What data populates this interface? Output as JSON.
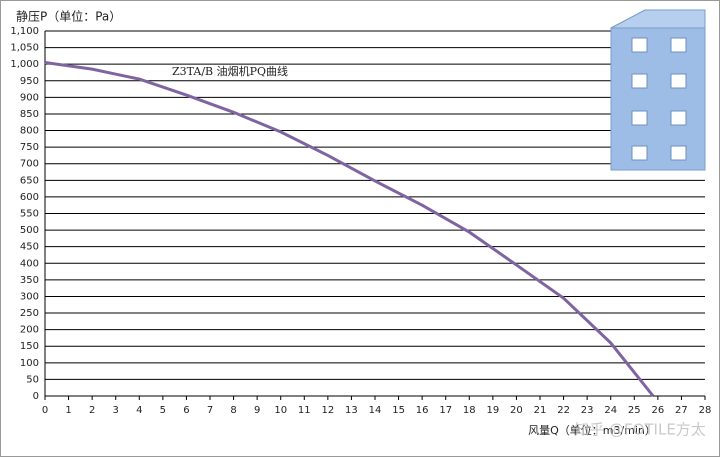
{
  "chart_data": {
    "type": "line",
    "y_axis_label": "静压P（单位：Pa）",
    "x_axis_label": "风量Q（单位：m3/min）",
    "annotation": "Z3TA/B 油烟机PQ曲线",
    "watermark": "知乎 @FOTILE方太",
    "x": [
      0,
      2,
      4,
      6,
      8,
      10,
      12,
      14,
      16,
      18,
      20,
      22,
      24,
      25.8
    ],
    "series": [
      {
        "name": "Z3TA/B",
        "color": "#8064a2",
        "values": [
          1005,
          985,
          955,
          907,
          855,
          796,
          725,
          648,
          575,
          494,
          395,
          295,
          160,
          0
        ]
      }
    ],
    "xlim": [
      0,
      28
    ],
    "xticks": [
      0,
      1,
      2,
      3,
      4,
      5,
      6,
      7,
      8,
      9,
      10,
      11,
      12,
      13,
      14,
      15,
      16,
      17,
      18,
      19,
      20,
      21,
      22,
      23,
      24,
      25,
      26,
      27,
      28
    ],
    "ylim": [
      0,
      1100
    ],
    "yticks": [
      0,
      50,
      100,
      150,
      200,
      250,
      300,
      350,
      400,
      450,
      500,
      550,
      600,
      650,
      700,
      750,
      800,
      850,
      900,
      950,
      {
        "value": 1000,
        "label": "1,000"
      },
      {
        "value": 1050,
        "label": "1,050"
      },
      {
        "value": 1100,
        "label": "1,100"
      }
    ],
    "grid": true
  }
}
